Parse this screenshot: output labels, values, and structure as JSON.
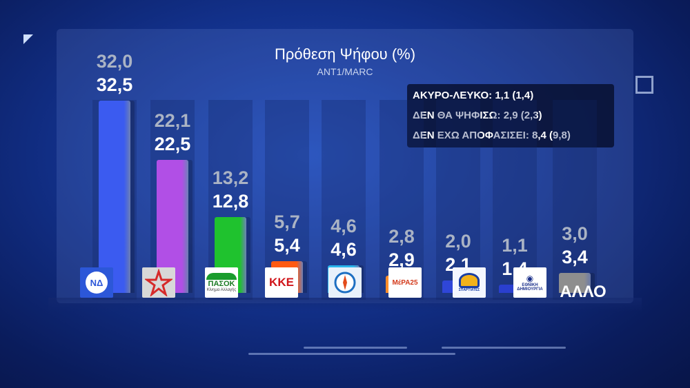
{
  "chart_data": {
    "type": "bar",
    "title": "Πρόθεση Ψήφου (%)",
    "subtitle": "ANT1/MARC",
    "categories": [
      "ΝΔ",
      "ΣΥΡΙΖΑ",
      "ΠΑΣΟΚ",
      "ΚΚΕ",
      "ΕΛΛΗΝΙΚΗ ΛΥΣΗ",
      "ΜέΡΑ25",
      "ΣΠΑΡΤΙΑΤΕΣ",
      "ΕΘΝΙΚΗ ΔΗΜΙΟΥΡΓΙΑ",
      "ΑΛΛΟ"
    ],
    "category_labels": [
      "32,5",
      "22,5",
      "12,8",
      "5,4",
      "4,6",
      "2,9",
      "2,1",
      "1,4",
      "3,4"
    ],
    "previous_labels": [
      "32,0",
      "22,1",
      "13,2",
      "5,7",
      "4,6",
      "2,8",
      "2,0",
      "1,1",
      "3,0"
    ],
    "series": [
      {
        "values": [
          32.5,
          22.5,
          12.8,
          5.4,
          4.6,
          2.9,
          2.1,
          1.4,
          3.4
        ]
      },
      {
        "values": [
          32.0,
          22.1,
          13.2,
          5.7,
          4.6,
          2.8,
          2.0,
          1.1,
          3.0
        ]
      }
    ],
    "colors": [
      "#3b5bf0",
      "#b14fe6",
      "#1fc22e",
      "#ff5a12",
      "#2bb6ec",
      "#ff8e2a",
      "#2f46d8",
      "#2a3fcf",
      "#8e8e8e"
    ],
    "ylim": [
      0,
      35
    ],
    "grid": false,
    "annotations": [
      "ΑΚΥΡΟ-ΛΕΥΚΟ: 1,1  (1,4)",
      "ΔΕΝ ΘΑ ΨΗΦΙΣΩ: 2,9  (2,3)",
      "ΔΕΝ ΕΧΩ ΑΠΟΦΑΣΙΣΕΙ: 8,4  (9,8)"
    ],
    "other_label": "ΑΛΛΟ"
  },
  "logos": {
    "nd": "ΝΔ",
    "pasok": "ΠΑΣΟΚ",
    "pasok_sub": "Κίνημα Αλλαγής",
    "kke": "ΚΚΕ",
    "mera": "ΜέΡΑ25",
    "ethniki": "ΕΘΝΙΚΗ ΔΗΜΙΟΥΡΓΙΑ",
    "spartiates": "ΣΠΑΡΤΙΑΤΕΣ"
  }
}
